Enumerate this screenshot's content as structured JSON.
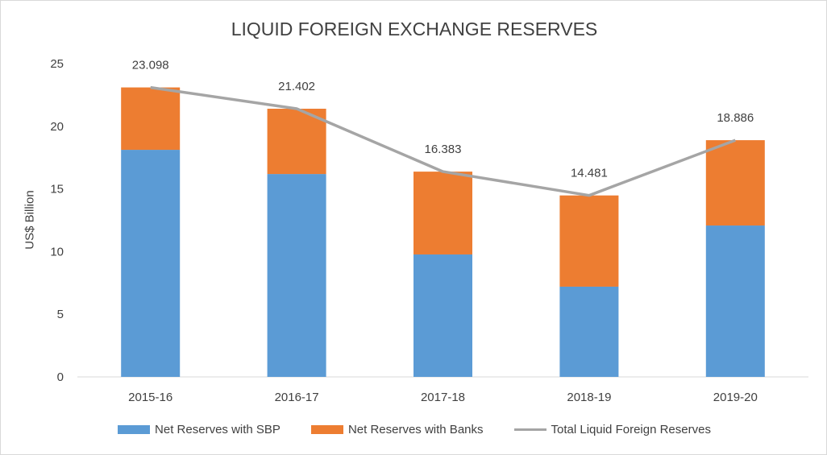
{
  "chart_data": {
    "type": "bar",
    "stacked": true,
    "title": "LIQUID FOREIGN EXCHANGE RESERVES",
    "xlabel": "",
    "ylabel": "US$ Billion",
    "ylim": [
      0,
      25
    ],
    "yticks": [
      0,
      5,
      10,
      15,
      20,
      25
    ],
    "grid": false,
    "legend_position": "bottom",
    "categories": [
      "2015-16",
      "2016-17",
      "2017-18",
      "2018-19",
      "2019-20"
    ],
    "series": [
      {
        "name": "Net Reserves with SBP",
        "type": "bar",
        "color": "#5b9bd5",
        "values": [
          18.12,
          16.19,
          9.77,
          7.2,
          12.08
        ]
      },
      {
        "name": "Net Reserves with Banks",
        "type": "bar",
        "color": "#ed7d31",
        "values": [
          4.98,
          5.21,
          6.61,
          7.28,
          6.81
        ]
      },
      {
        "name": "Total Liquid Foreign Reserves",
        "type": "line",
        "color": "#a5a5a5",
        "values": [
          23.098,
          21.402,
          16.383,
          14.481,
          18.886
        ]
      }
    ],
    "data_labels": [
      "23.098",
      "21.402",
      "16.383",
      "14.481",
      "18.886"
    ]
  }
}
